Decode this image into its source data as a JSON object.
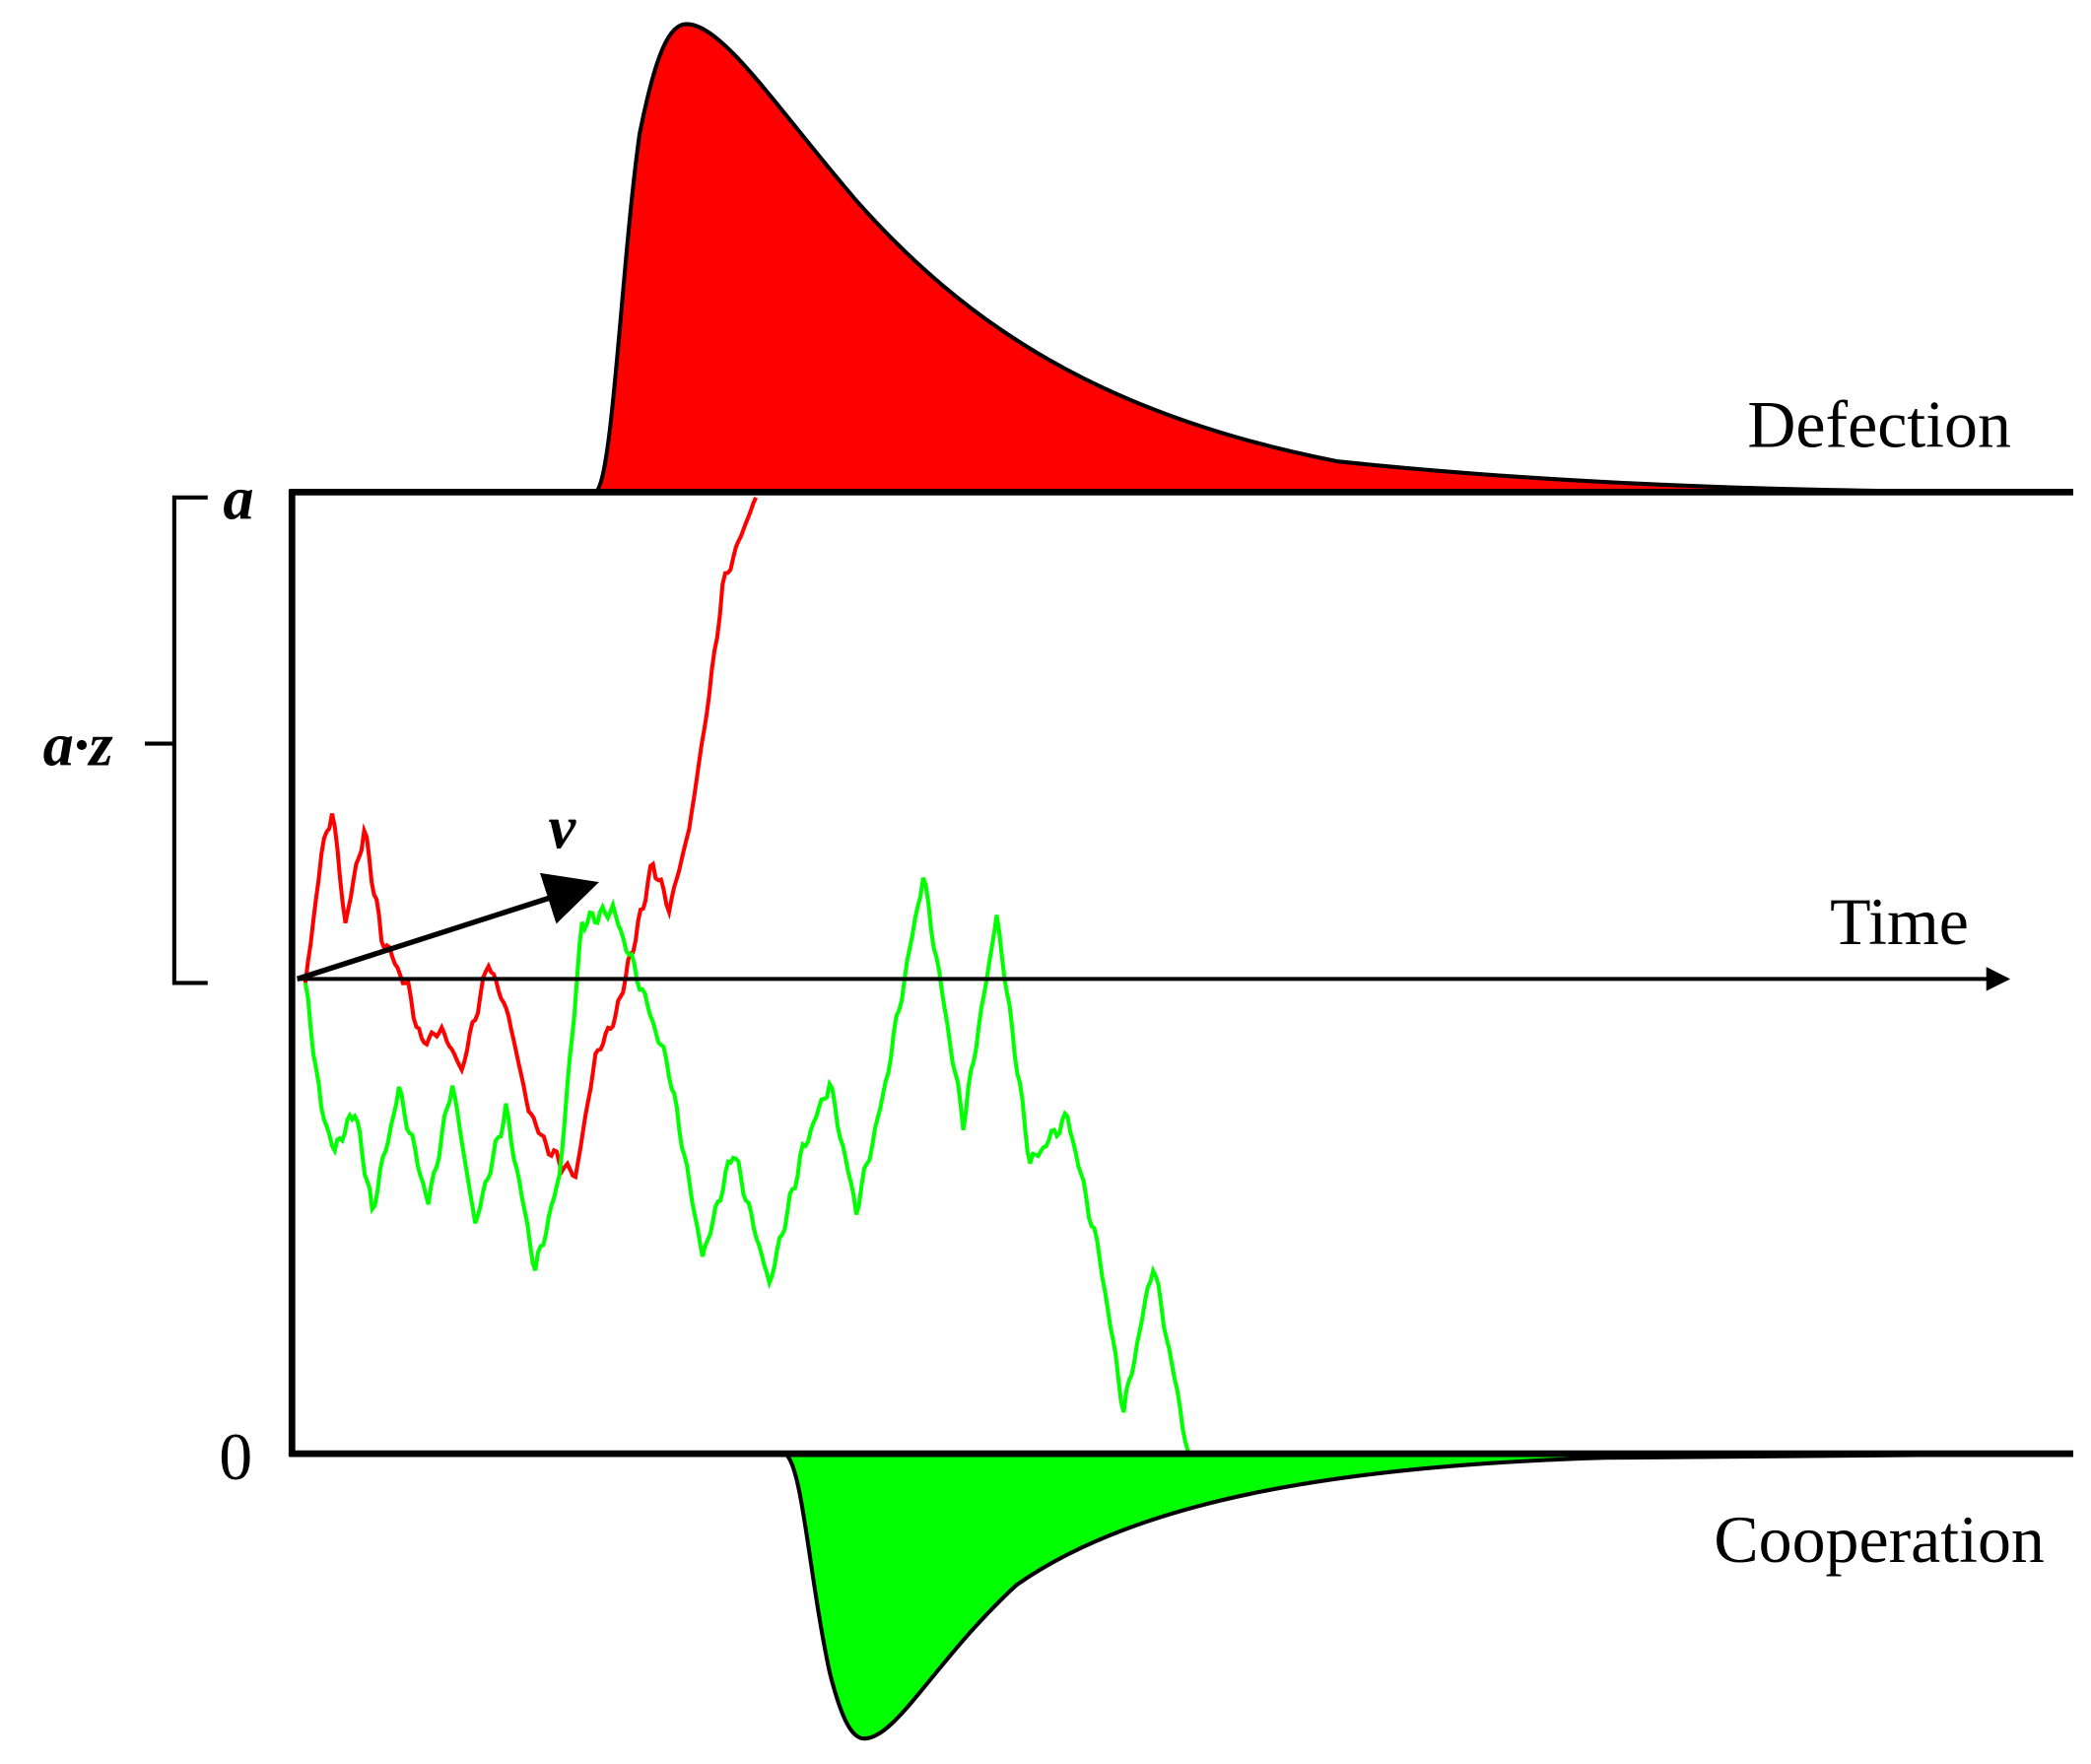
{
  "boundaries": {
    "upper": "a",
    "lower": "0"
  },
  "start_point": "a·z",
  "drift": "v",
  "axis": {
    "label": "Time"
  },
  "outcomes": {
    "upper": "Defection",
    "lower": "Cooperation"
  }
}
